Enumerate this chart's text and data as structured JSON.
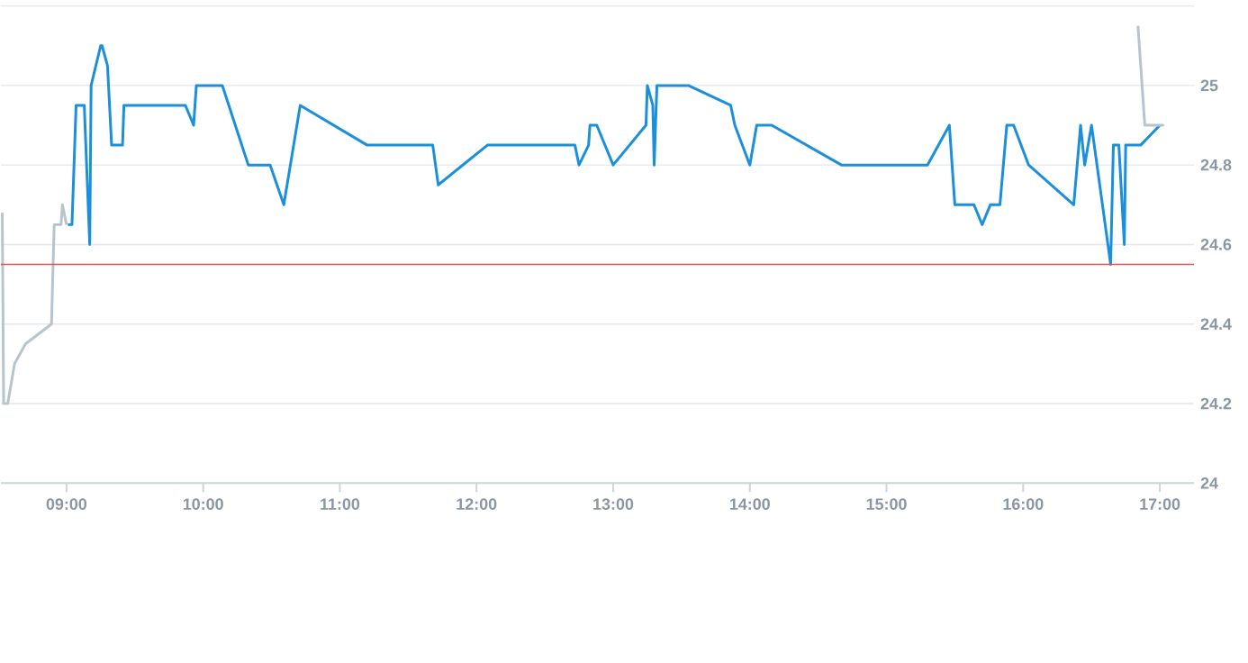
{
  "chart_data": {
    "type": "line",
    "series": [
      {
        "color": "#b8c4cc",
        "x": [
          8.53,
          8.54,
          8.57,
          8.62,
          8.7,
          8.89,
          8.91,
          8.96,
          8.97,
          9.0
        ],
        "values": [
          24.68,
          24.2,
          24.2,
          24.3,
          24.35,
          24.4,
          24.65,
          24.65,
          24.7,
          24.65
        ]
      },
      {
        "color": "#1a8fdc",
        "x": [
          9.01,
          9.04,
          9.07,
          9.13,
          9.17,
          9.18,
          9.25,
          9.26,
          9.3,
          9.33,
          9.41,
          9.42,
          9.87,
          9.93,
          9.95,
          10.14,
          10.33,
          10.49,
          10.59,
          10.71,
          11.2,
          11.68,
          11.72,
          12.08,
          12.72,
          12.75,
          12.82,
          12.83,
          12.88,
          13.0,
          13.24,
          13.25,
          13.29,
          13.3,
          13.32,
          13.55,
          13.86,
          13.89,
          14.0,
          14.05,
          14.16,
          14.67,
          15.3,
          15.46,
          15.5,
          15.64,
          15.7,
          15.76,
          15.83,
          15.88,
          15.93,
          16.04,
          16.37,
          16.42,
          16.45,
          16.5,
          16.64,
          16.66,
          16.7,
          16.74,
          16.75,
          16.86,
          17.0
        ],
        "values": [
          24.65,
          24.65,
          24.95,
          24.95,
          24.6,
          25.0,
          25.1,
          25.1,
          25.05,
          24.85,
          24.85,
          24.95,
          24.95,
          24.9,
          25.0,
          25.0,
          24.8,
          24.8,
          24.7,
          24.95,
          24.85,
          24.85,
          24.75,
          24.85,
          24.85,
          24.8,
          24.85,
          24.9,
          24.9,
          24.8,
          24.9,
          25.0,
          24.95,
          24.8,
          25.0,
          25.0,
          24.95,
          24.9,
          24.8,
          24.9,
          24.9,
          24.8,
          24.8,
          24.9,
          24.7,
          24.7,
          24.65,
          24.7,
          24.7,
          24.9,
          24.9,
          24.8,
          24.7,
          24.9,
          24.8,
          24.9,
          24.55,
          24.85,
          24.85,
          24.6,
          24.85,
          24.85,
          24.9
        ]
      },
      {
        "color": "#b8c4cc",
        "x": [
          16.84,
          16.89,
          17.03
        ],
        "values": [
          25.15,
          24.9,
          24.9
        ]
      }
    ],
    "xlim": [
      8.52,
      17.25
    ],
    "ylim": [
      24,
      25.2
    ],
    "xticks": [
      {
        "value": 9,
        "label": "09:00"
      },
      {
        "value": 10,
        "label": "10:00"
      },
      {
        "value": 11,
        "label": "11:00"
      },
      {
        "value": 12,
        "label": "12:00"
      },
      {
        "value": 13,
        "label": "13:00"
      },
      {
        "value": 14,
        "label": "14:00"
      },
      {
        "value": 15,
        "label": "15:00"
      },
      {
        "value": 16,
        "label": "16:00"
      },
      {
        "value": 17,
        "label": "17:00"
      }
    ],
    "yticks": [
      24,
      24.2,
      24.4,
      24.6,
      24.8,
      25,
      {
        "value": 25.2,
        "label": null
      }
    ],
    "ref_lines": [
      {
        "axis": "y",
        "value": 24.55,
        "color": "#d9534f"
      }
    ],
    "grid": "y",
    "marker": "none",
    "line_style": "solid"
  }
}
